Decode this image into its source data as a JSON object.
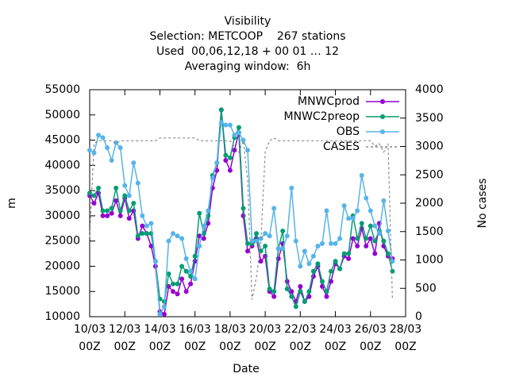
{
  "chart_data": {
    "type": "line",
    "title": "Visibility",
    "subtitle": [
      "Selection: METCOOP    267 stations",
      "Used  00,06,12,18 + 00 01 … 12",
      "Averaging window:  6h"
    ],
    "xlabel": "Date",
    "ylabel": "m",
    "y2label": "No cases",
    "x": [
      "10/03 00Z",
      "10/03 06Z",
      "10/03 12Z",
      "10/03 18Z",
      "11/03 00Z",
      "11/03 06Z",
      "11/03 12Z",
      "11/03 18Z",
      "12/03 00Z",
      "12/03 06Z",
      "12/03 12Z",
      "12/03 18Z",
      "13/03 00Z",
      "13/03 06Z",
      "13/03 12Z",
      "13/03 18Z",
      "14/03 00Z",
      "14/03 06Z",
      "14/03 12Z",
      "14/03 18Z",
      "15/03 00Z",
      "15/03 06Z",
      "15/03 12Z",
      "15/03 18Z",
      "16/03 00Z",
      "16/03 06Z",
      "16/03 12Z",
      "16/03 18Z",
      "17/03 00Z",
      "17/03 06Z",
      "17/03 12Z",
      "17/03 18Z",
      "18/03 00Z",
      "18/03 06Z",
      "18/03 12Z",
      "18/03 18Z",
      "19/03 00Z",
      "19/03 06Z",
      "19/03 12Z",
      "19/03 18Z",
      "20/03 00Z",
      "20/03 06Z",
      "20/03 12Z",
      "20/03 18Z",
      "21/03 00Z",
      "21/03 06Z",
      "21/03 12Z",
      "21/03 18Z",
      "22/03 00Z",
      "22/03 06Z",
      "22/03 12Z",
      "22/03 18Z",
      "23/03 00Z",
      "23/03 06Z",
      "23/03 12Z",
      "23/03 18Z",
      "24/03 00Z",
      "24/03 06Z",
      "24/03 12Z",
      "24/03 18Z",
      "25/03 00Z",
      "25/03 06Z",
      "25/03 12Z",
      "25/03 18Z",
      "26/03 00Z",
      "26/03 06Z",
      "26/03 12Z",
      "26/03 18Z",
      "27/03 00Z",
      "27/03 06Z"
    ],
    "series": [
      {
        "name": "MNWCprod",
        "color": "#9400d3",
        "markers": true,
        "values": [
          34000,
          32500,
          34500,
          30000,
          30000,
          30500,
          33000,
          30000,
          33500,
          29500,
          31000,
          25500,
          28000,
          26500,
          24000,
          20000,
          11000,
          10500,
          16000,
          15000,
          14500,
          17500,
          15000,
          16500,
          21000,
          26000,
          25500,
          28500,
          35500,
          39000,
          51000,
          41000,
          39000,
          43000,
          46500,
          30000,
          23000,
          24000,
          25500,
          21000,
          22000,
          15000,
          14000,
          21500,
          24500,
          17000,
          15000,
          13000,
          16000,
          13000,
          14000,
          18000,
          20000,
          16000,
          14000,
          17000,
          20500,
          19500,
          22000,
          21500,
          25500,
          24000,
          27500,
          24000,
          25500,
          22500,
          28500,
          24000,
          22000,
          21500
        ]
      },
      {
        "name": "MNWC2preop",
        "color": "#009e73",
        "markers": true,
        "values": [
          34500,
          34000,
          35500,
          31000,
          31000,
          31500,
          35500,
          31000,
          34000,
          31000,
          32500,
          26000,
          26500,
          26500,
          26500,
          21000,
          13500,
          13000,
          18500,
          16500,
          16500,
          20000,
          19000,
          18000,
          22000,
          30500,
          26500,
          30000,
          38000,
          40500,
          51000,
          42000,
          41500,
          45500,
          47500,
          31500,
          24500,
          24500,
          26500,
          23000,
          24000,
          15500,
          15000,
          23500,
          27000,
          15500,
          14000,
          12000,
          15000,
          13000,
          15000,
          19000,
          20500,
          17000,
          15000,
          19000,
          21000,
          19500,
          22500,
          22500,
          30000,
          25500,
          28500,
          25500,
          28000,
          25000,
          27000,
          25000,
          22500,
          19000
        ]
      },
      {
        "name": "OBS",
        "color": "#56b4e9",
        "markers": true,
        "values": [
          43000,
          42500,
          46000,
          45500,
          43500,
          41000,
          44500,
          43500,
          36000,
          34000,
          40500,
          36500,
          30000,
          28000,
          28500,
          21000,
          10500,
          12000,
          25000,
          26500,
          26000,
          25500,
          21500,
          19000,
          17500,
          24000,
          28000,
          31000,
          37500,
          40500,
          48500,
          48000,
          48000,
          46000,
          46500,
          45000,
          43000,
          25000,
          25000,
          25500,
          26500,
          26000,
          31500,
          23500,
          23500,
          26000,
          35500,
          25000,
          20000,
          23000,
          20500,
          22000,
          24000,
          24500,
          31000,
          24500,
          24500,
          25500,
          32000,
          29500,
          29500,
          31000,
          38000,
          33500,
          31000,
          28000,
          26500,
          33000,
          27000,
          21000
        ]
      },
      {
        "name": "CASES",
        "color": "#8a8a8a",
        "markers": false,
        "dashed": true,
        "axis": "y2",
        "values": [
          1400,
          3050,
          3100,
          3100,
          3100,
          3100,
          3050,
          3100,
          3100,
          3100,
          3100,
          3100,
          3100,
          3100,
          3100,
          3100,
          3150,
          3150,
          3150,
          3150,
          3150,
          3150,
          3150,
          3150,
          3150,
          3100,
          3100,
          3100,
          3100,
          3100,
          3100,
          3100,
          3100,
          3000,
          2900,
          3100,
          2400,
          300,
          700,
          1300,
          2900,
          3100,
          3150,
          3100,
          3100,
          3100,
          3100,
          3100,
          3100,
          3100,
          3100,
          3100,
          3100,
          3100,
          3100,
          3100,
          3100,
          3100,
          3100,
          3100,
          3100,
          3100,
          3100,
          3100,
          3100,
          3000,
          3050,
          2900,
          3050,
          300
        ]
      }
    ],
    "xlim": [
      "10/03 00Z",
      "28/03 00Z"
    ],
    "xticks": [
      "10/03 00Z",
      "12/03 00Z",
      "14/03 00Z",
      "16/03 00Z",
      "18/03 00Z",
      "20/03 00Z",
      "22/03 00Z",
      "24/03 00Z",
      "26/03 00Z",
      "28/03 00Z"
    ],
    "ylim": [
      10000,
      55000
    ],
    "yticks": [
      10000,
      15000,
      20000,
      25000,
      30000,
      35000,
      40000,
      45000,
      50000,
      55000
    ],
    "y2lim": [
      0,
      4000
    ],
    "y2ticks": [
      0,
      500,
      1000,
      1500,
      2000,
      2500,
      3000,
      3500,
      4000
    ],
    "grid": false,
    "legend": "top-right"
  }
}
